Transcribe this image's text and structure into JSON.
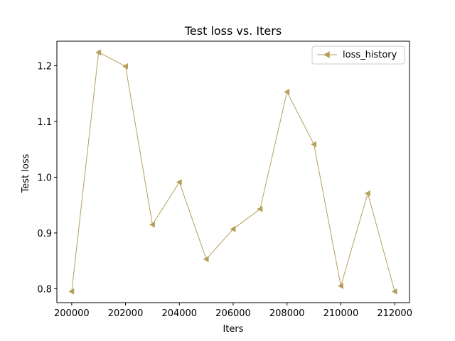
{
  "chart_data": {
    "type": "line",
    "title": "Test loss  vs. Iters",
    "xlabel": "Iters",
    "ylabel": "Test loss",
    "xlim": [
      199450,
      212550
    ],
    "ylim": [
      0.775,
      1.244
    ],
    "xticks": [
      200000,
      202000,
      204000,
      206000,
      208000,
      210000,
      212000
    ],
    "yticks": [
      0.8,
      0.9,
      1.0,
      1.1,
      1.2
    ],
    "ytick_labels": [
      "0.8",
      "0.9",
      "1.0",
      "1.1",
      "1.2"
    ],
    "grid": false,
    "legend_position": "top-right",
    "series": [
      {
        "name": "loss_history",
        "color": "#b5a05a",
        "marker": "triangle-left",
        "x": [
          200000,
          201000,
          202000,
          203000,
          204000,
          205000,
          206000,
          207000,
          208000,
          209000,
          210000,
          211000,
          212000
        ],
        "y": [
          0.795,
          1.224,
          1.199,
          0.915,
          0.991,
          0.853,
          0.907,
          0.943,
          1.153,
          1.059,
          0.805,
          0.971,
          0.795
        ]
      }
    ]
  }
}
